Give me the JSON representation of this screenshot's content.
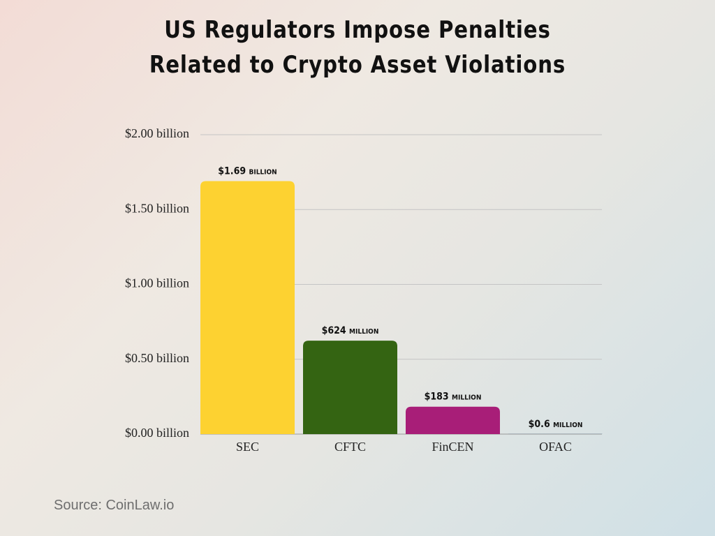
{
  "chart_data": {
    "type": "bar",
    "title": "US Regulators Impose Penalties Related to Crypto Asset Violations",
    "categories": [
      "SEC",
      "CFTC",
      "FinCEN",
      "OFAC"
    ],
    "values": [
      1.69,
      0.624,
      0.183,
      0.0006
    ],
    "value_labels": [
      "$1.69 billion",
      "$624 million",
      "$183 million",
      "$0.6 million"
    ],
    "colors": [
      "#fdd231",
      "#346412",
      "#a81e78",
      "#2f5d8a"
    ],
    "ylim": [
      0,
      2
    ],
    "yticks": [
      {
        "value": 0,
        "label": "$0.00 billion"
      },
      {
        "value": 0.5,
        "label": "$0.50 billion"
      },
      {
        "value": 1,
        "label": "$1.00 billion"
      },
      {
        "value": 1.5,
        "label": "$1.50 billion"
      },
      {
        "value": 2,
        "label": "$2.00 billion"
      }
    ],
    "grid": true,
    "source": "Source: CoinLaw.io"
  }
}
